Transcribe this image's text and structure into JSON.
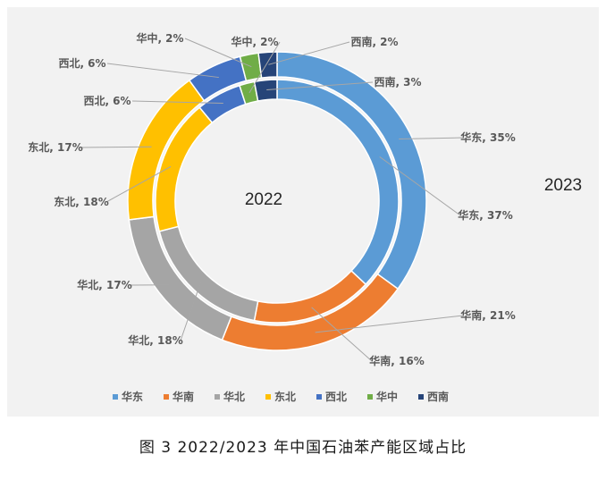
{
  "chart_data": {
    "type": "donut",
    "categories": [
      "华东",
      "华南",
      "华北",
      "东北",
      "西北",
      "华中",
      "西南"
    ],
    "colors": [
      "#5b9bd5",
      "#ed7d31",
      "#a5a5a5",
      "#ffc000",
      "#4472c4",
      "#70ad47",
      "#264478"
    ],
    "series": [
      {
        "name": "2022",
        "values": [
          37,
          16,
          18,
          18,
          6,
          2,
          3
        ],
        "labels": [
          "华东, 37%",
          "华南, 16%",
          "华北, 18%",
          "东北, 18%",
          "西北, 6%",
          "华中, 2%",
          "西南, 3%"
        ]
      },
      {
        "name": "2023",
        "values": [
          35,
          21,
          17,
          17,
          6,
          2,
          2
        ],
        "labels": [
          "华东, 35%",
          "华南, 21%",
          "华北, 17%",
          "东北, 17%",
          "西北, 6%",
          "华中, 2%",
          "西南, 2%"
        ]
      }
    ],
    "legend": "bottom"
  },
  "caption": "图 3  2022/2023 年中国石油苯产能区域占比"
}
